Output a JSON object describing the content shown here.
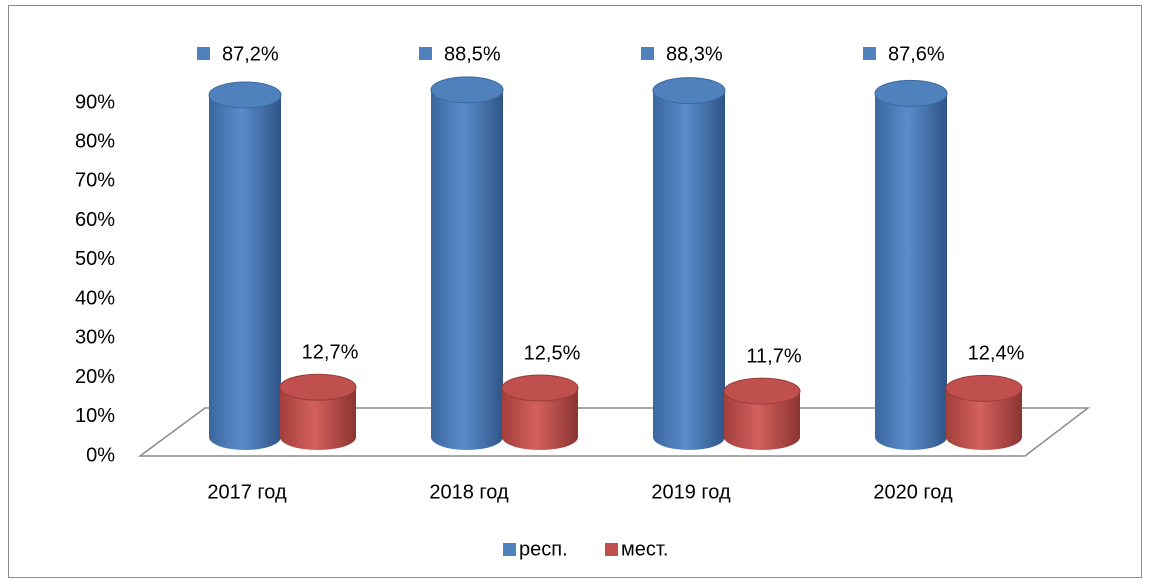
{
  "chart_data": {
    "type": "cylinder-bar",
    "categories": [
      "2017 год",
      "2018 год",
      "2019 год",
      "2020 год"
    ],
    "series": [
      {
        "name": "респ.",
        "color": "#4f81bd",
        "values": [
          87.2,
          88.5,
          88.3,
          87.6
        ],
        "value_labels": [
          "87,2%",
          "88,5%",
          "88,3%",
          "87,6%"
        ]
      },
      {
        "name": "мест.",
        "color": "#c0504d",
        "values": [
          12.7,
          12.5,
          11.7,
          12.4
        ],
        "value_labels": [
          "12,7%",
          "12,5%",
          "11,7%",
          "12,4%"
        ]
      }
    ],
    "ylim": [
      0,
      90
    ],
    "yticks": [
      {
        "value": 0,
        "label": "0%"
      },
      {
        "value": 10,
        "label": "10%"
      },
      {
        "value": 20,
        "label": "20%"
      },
      {
        "value": 30,
        "label": "30%"
      },
      {
        "value": 40,
        "label": "40%"
      },
      {
        "value": 50,
        "label": "50%"
      },
      {
        "value": 60,
        "label": "60%"
      },
      {
        "value": 70,
        "label": "70%"
      },
      {
        "value": 80,
        "label": "80%"
      },
      {
        "value": 90,
        "label": "90%"
      }
    ],
    "legend": "bottom"
  }
}
